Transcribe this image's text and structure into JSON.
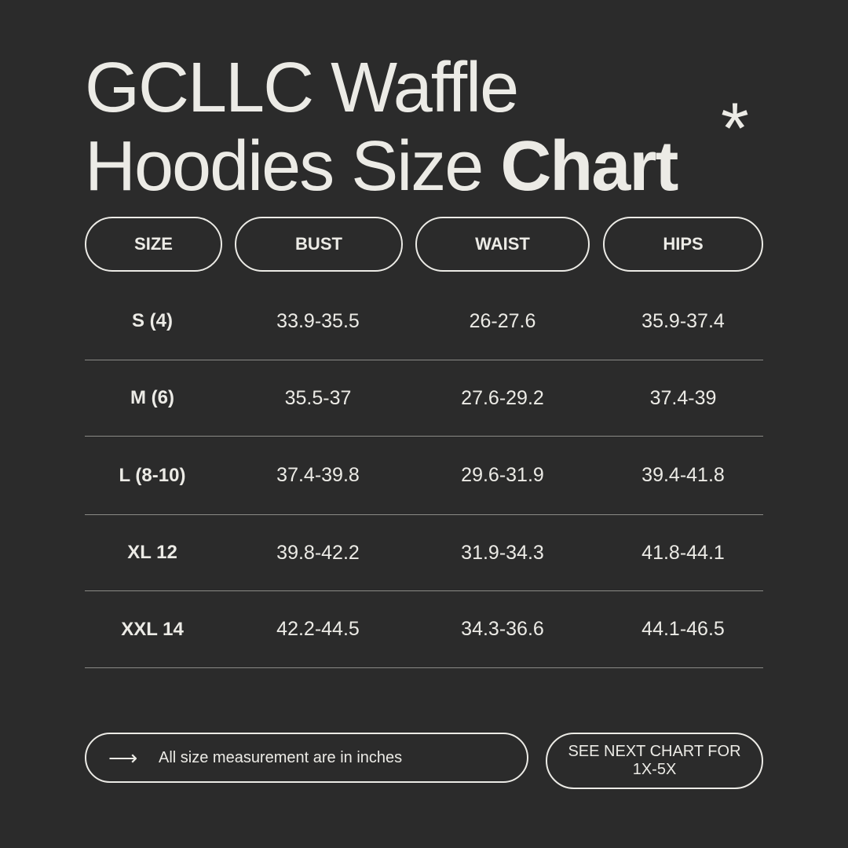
{
  "title": {
    "line1": "GCLLC Waffle",
    "line2_regular": "Hoodies Size",
    "line2_bold": "Chart",
    "decoration": "*"
  },
  "headers": [
    "SIZE",
    "BUST",
    "WAIST",
    "HIPS"
  ],
  "rows": [
    [
      "S (4)",
      "33.9-35.5",
      "26-27.6",
      "35.9-37.4"
    ],
    [
      "M (6)",
      "35.5-37",
      "27.6-29.2",
      "37.4-39"
    ],
    [
      "L (8-10)",
      "37.4-39.8",
      "29.6-31.9",
      "39.4-41.8"
    ],
    [
      "XL 12",
      "39.8-42.2",
      "31.9-34.3",
      "41.8-44.1"
    ],
    [
      "XXL 14",
      "42.2-44.5",
      "34.3-36.6",
      "44.1-46.5"
    ]
  ],
  "footer": {
    "arrow_icon": "arrow-right-icon",
    "note": "All size measurement are in inches",
    "next_chart": "SEE NEXT CHART FOR 1X-5X"
  },
  "colors": {
    "background": "#2b2b2b",
    "text": "#ecebe6"
  }
}
